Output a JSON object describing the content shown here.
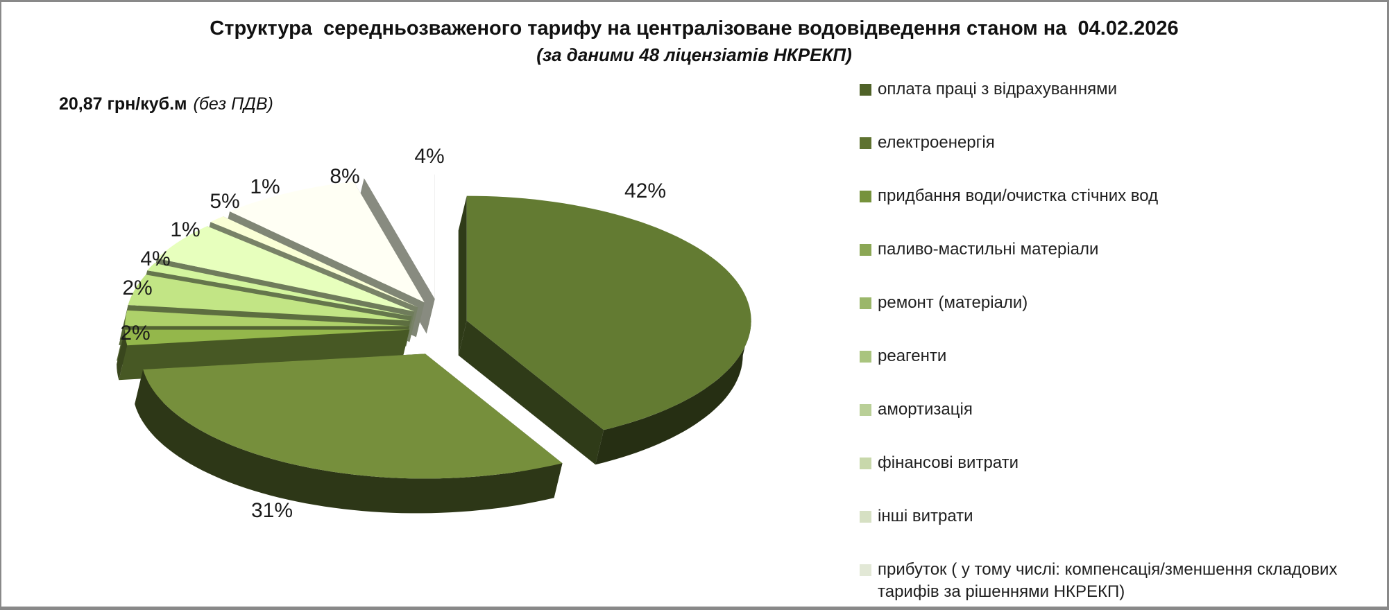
{
  "chart_data": {
    "type": "pie",
    "style": "3d-exploded, monochrome green ramp, no axes, white background",
    "title": "Структура  середньозваженого тарифу на централізоване водовідведення станом на  04.02.2026",
    "subtitle": "(за даними 48 ліцензіатів НКРЕКП)",
    "annotation": {
      "value": "20,87 грн/куб.м",
      "note": "(без ПДВ)"
    },
    "unit": "%",
    "total": 100,
    "legend_position": "right",
    "categories": [
      "оплата праці з відрахуваннями",
      "електроенергія",
      "придбання води/очистка стічних вод",
      "паливо-мастильні матеріали",
      "ремонт (матеріали)",
      "реагенти",
      "амортизація",
      "фінансові витрати",
      "інші витрати",
      "прибуток ( у тому числі: компенсація/зменшення складових тарифів за рішеннями НКРЕКП)"
    ],
    "values": [
      42,
      31,
      2,
      2,
      4,
      1,
      5,
      1,
      8,
      4
    ],
    "labels": [
      "42%",
      "31%",
      "2%",
      "2%",
      "4%",
      "1%",
      "5%",
      "1%",
      "8%",
      "4%"
    ],
    "colors": [
      "#4F6228",
      "#5E7230",
      "#76923C",
      "#8BA755",
      "#9BB76A",
      "#A9C47E",
      "#B9CF97",
      "#C8D8AB",
      "#D6E0C3",
      "#E2E8D6"
    ]
  }
}
